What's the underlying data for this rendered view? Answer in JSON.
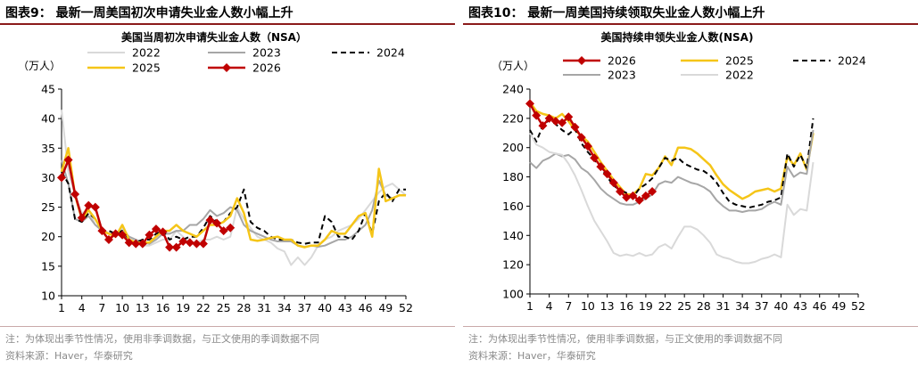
{
  "left": {
    "figure_title": "图表9：  最新一周美国初次申请失业金人数小幅上升",
    "note_line1": "注：为体现出季节性情况，使用非季调数据，与正文使用的季调数据不同",
    "note_line2": "资料来源：Haver，华泰研究",
    "chart_data": {
      "type": "line",
      "title": "美国当周初次申请失业金人数（NSA）",
      "unit_label": "（万人）",
      "xlabel": "",
      "ylabel": "",
      "ylim": [
        10,
        45
      ],
      "yticks": [
        10,
        15,
        20,
        25,
        30,
        35,
        40,
        45
      ],
      "xlim": [
        1,
        52
      ],
      "xticks": [
        1,
        4,
        7,
        10,
        13,
        16,
        19,
        22,
        25,
        28,
        31,
        34,
        37,
        40,
        43,
        46,
        49,
        52
      ],
      "grid": false,
      "legend_position": "top",
      "series": [
        {
          "name": "2022",
          "color": "#d9d9d9",
          "style": "solid",
          "width": 2,
          "marker": false,
          "values": [
            41.5,
            31,
            27,
            24,
            24.5,
            22,
            21.5,
            20.5,
            20,
            21.5,
            20,
            19,
            18.5,
            18.5,
            19,
            19.5,
            19.5,
            21,
            20,
            19,
            19,
            19.5,
            19.5,
            20,
            19.5,
            20,
            25,
            23,
            21.5,
            20,
            19.5,
            19,
            18,
            17.5,
            15.2,
            16.5,
            15.2,
            16.5,
            18.5,
            19.5,
            20,
            21,
            21.5,
            22,
            23,
            24.5,
            26,
            27.5,
            28.5,
            29,
            28,
            27
          ]
        },
        {
          "name": "2023",
          "color": "#a6a6a6",
          "style": "solid",
          "width": 2,
          "marker": false,
          "values": [
            33,
            29,
            23,
            22.5,
            23.5,
            22,
            21,
            20.5,
            20.5,
            21,
            20,
            19.5,
            19,
            18.8,
            19.5,
            20.5,
            20.5,
            21,
            21,
            22,
            22,
            23,
            24.5,
            23.5,
            24,
            25,
            24.5,
            22,
            21,
            20.5,
            20,
            19.5,
            19.2,
            19.2,
            19.2,
            18.5,
            18.3,
            18.5,
            18.3,
            18.5,
            19,
            19.5,
            19.5,
            20,
            21,
            22,
            24.5,
            29.5,
            27,
            26.5,
            27,
            27
          ]
        },
        {
          "name": "2024",
          "color": "#000000",
          "style": "dashed",
          "width": 2,
          "marker": false,
          "values": [
            31,
            29,
            23,
            22.5,
            24,
            23,
            21,
            21,
            20.5,
            21,
            19.5,
            19,
            19.5,
            19.5,
            20.5,
            21,
            19.5,
            20,
            19.5,
            20,
            20,
            21.5,
            23.5,
            22.5,
            22.5,
            24,
            25,
            28,
            22.5,
            21.5,
            21,
            20,
            19.5,
            19.5,
            19.5,
            19,
            18.8,
            19,
            19,
            23.5,
            22.5,
            20,
            20,
            19.5,
            21,
            24,
            20.5,
            26,
            27.5,
            26,
            28,
            28
          ]
        },
        {
          "name": "2025",
          "color": "#f5c518",
          "style": "solid",
          "width": 2.5,
          "marker": false,
          "values": [
            31,
            35,
            27,
            23,
            24.5,
            23,
            21,
            20.5,
            20,
            22,
            19.5,
            19,
            19,
            19,
            20,
            21,
            21,
            22,
            21,
            20.5,
            20,
            21,
            22,
            22,
            22.5,
            23.5,
            26.5,
            24,
            19.5,
            19.3,
            19.5,
            19.8,
            20,
            19.5,
            19.5,
            18.5,
            18.2,
            18.5,
            18.5,
            19.5,
            21,
            20.5,
            20.5,
            22,
            23.5,
            24,
            20,
            31.5,
            26,
            26.5,
            27,
            27
          ]
        },
        {
          "name": "2026",
          "color": "#c00000",
          "style": "solid",
          "width": 2.5,
          "marker": true,
          "values": [
            30,
            33,
            27.2,
            23.2,
            25.3,
            25,
            21,
            19.5,
            20.5,
            20.3,
            19,
            18.8,
            18.8,
            20.3,
            21.3,
            20.8,
            18.2,
            18.2,
            19.2,
            19,
            18.8,
            18.8,
            22.8,
            22.3,
            21,
            21.5
          ]
        }
      ]
    }
  },
  "right": {
    "figure_title": "图表10：  最新一周美国持续领取失业金人数小幅上升",
    "note_line1": "注：为体现出季节性情况，使用非季调数据，与正文使用的季调数据不同",
    "note_line2": "资料来源：Haver，华泰研究",
    "chart_data": {
      "type": "line",
      "title": "美国持续申领失业金人数(NSA)",
      "unit_label": "（万人）",
      "xlabel": "",
      "ylabel": "",
      "ylim": [
        100,
        240
      ],
      "yticks": [
        100,
        120,
        140,
        160,
        180,
        200,
        220,
        240
      ],
      "xlim": [
        1,
        52
      ],
      "xticks": [
        1,
        4,
        7,
        10,
        13,
        16,
        19,
        22,
        25,
        28,
        31,
        34,
        37,
        40,
        43,
        46,
        49,
        52
      ],
      "grid": false,
      "legend_position": "top",
      "series": [
        {
          "name": "2026",
          "color": "#c00000",
          "style": "solid",
          "width": 2.5,
          "marker": true,
          "values": [
            230,
            222,
            215,
            220,
            218,
            217,
            221,
            214,
            207,
            201,
            193,
            187,
            182,
            176,
            170,
            166,
            167,
            164,
            167,
            170
          ]
        },
        {
          "name": "2025",
          "color": "#f5c518",
          "style": "solid",
          "width": 2.5,
          "marker": false,
          "values": [
            231,
            225,
            223,
            222,
            220,
            223,
            218,
            212,
            208,
            204,
            197,
            190,
            184,
            178,
            173,
            168,
            168,
            172,
            182,
            181,
            186,
            194,
            188,
            200,
            200,
            199,
            196,
            192,
            188,
            181,
            175,
            171,
            168,
            165,
            167,
            170,
            171,
            172,
            170,
            172,
            194,
            188,
            196,
            185,
            210
          ]
        },
        {
          "name": "2024",
          "color": "#000000",
          "style": "dashed",
          "width": 2,
          "marker": false,
          "values": [
            212,
            204,
            215,
            219,
            216,
            212,
            209,
            213,
            203,
            197,
            192,
            186,
            180,
            174,
            171,
            169,
            166,
            172,
            175,
            179,
            186,
            193,
            191,
            193,
            189,
            187,
            185,
            184,
            181,
            176,
            169,
            163,
            161,
            160,
            159,
            160,
            161,
            163,
            164,
            166,
            196,
            187,
            195,
            186,
            220
          ]
        },
        {
          "name": "2023",
          "color": "#a6a6a6",
          "style": "solid",
          "width": 2,
          "marker": false,
          "values": [
            190,
            186,
            191,
            193,
            196,
            194,
            195,
            192,
            186,
            183,
            178,
            172,
            168,
            165,
            162,
            161,
            161,
            163,
            165,
            168,
            175,
            177,
            176,
            180,
            178,
            176,
            175,
            173,
            170,
            164,
            160,
            157,
            157,
            156,
            157,
            157,
            158,
            161,
            163,
            161,
            187,
            180,
            183,
            182,
            212
          ]
        },
        {
          "name": "2022",
          "color": "#d9d9d9",
          "style": "solid",
          "width": 2,
          "marker": false,
          "values": [
            210,
            202,
            200,
            197,
            196,
            195,
            189,
            181,
            171,
            160,
            150,
            143,
            136,
            128,
            126,
            127,
            126,
            128,
            126,
            127,
            132,
            134,
            131,
            139,
            146,
            146,
            144,
            140,
            135,
            127,
            125,
            124,
            122,
            121,
            121,
            122,
            124,
            125,
            127,
            125,
            161,
            154,
            158,
            157,
            190
          ]
        }
      ]
    }
  }
}
